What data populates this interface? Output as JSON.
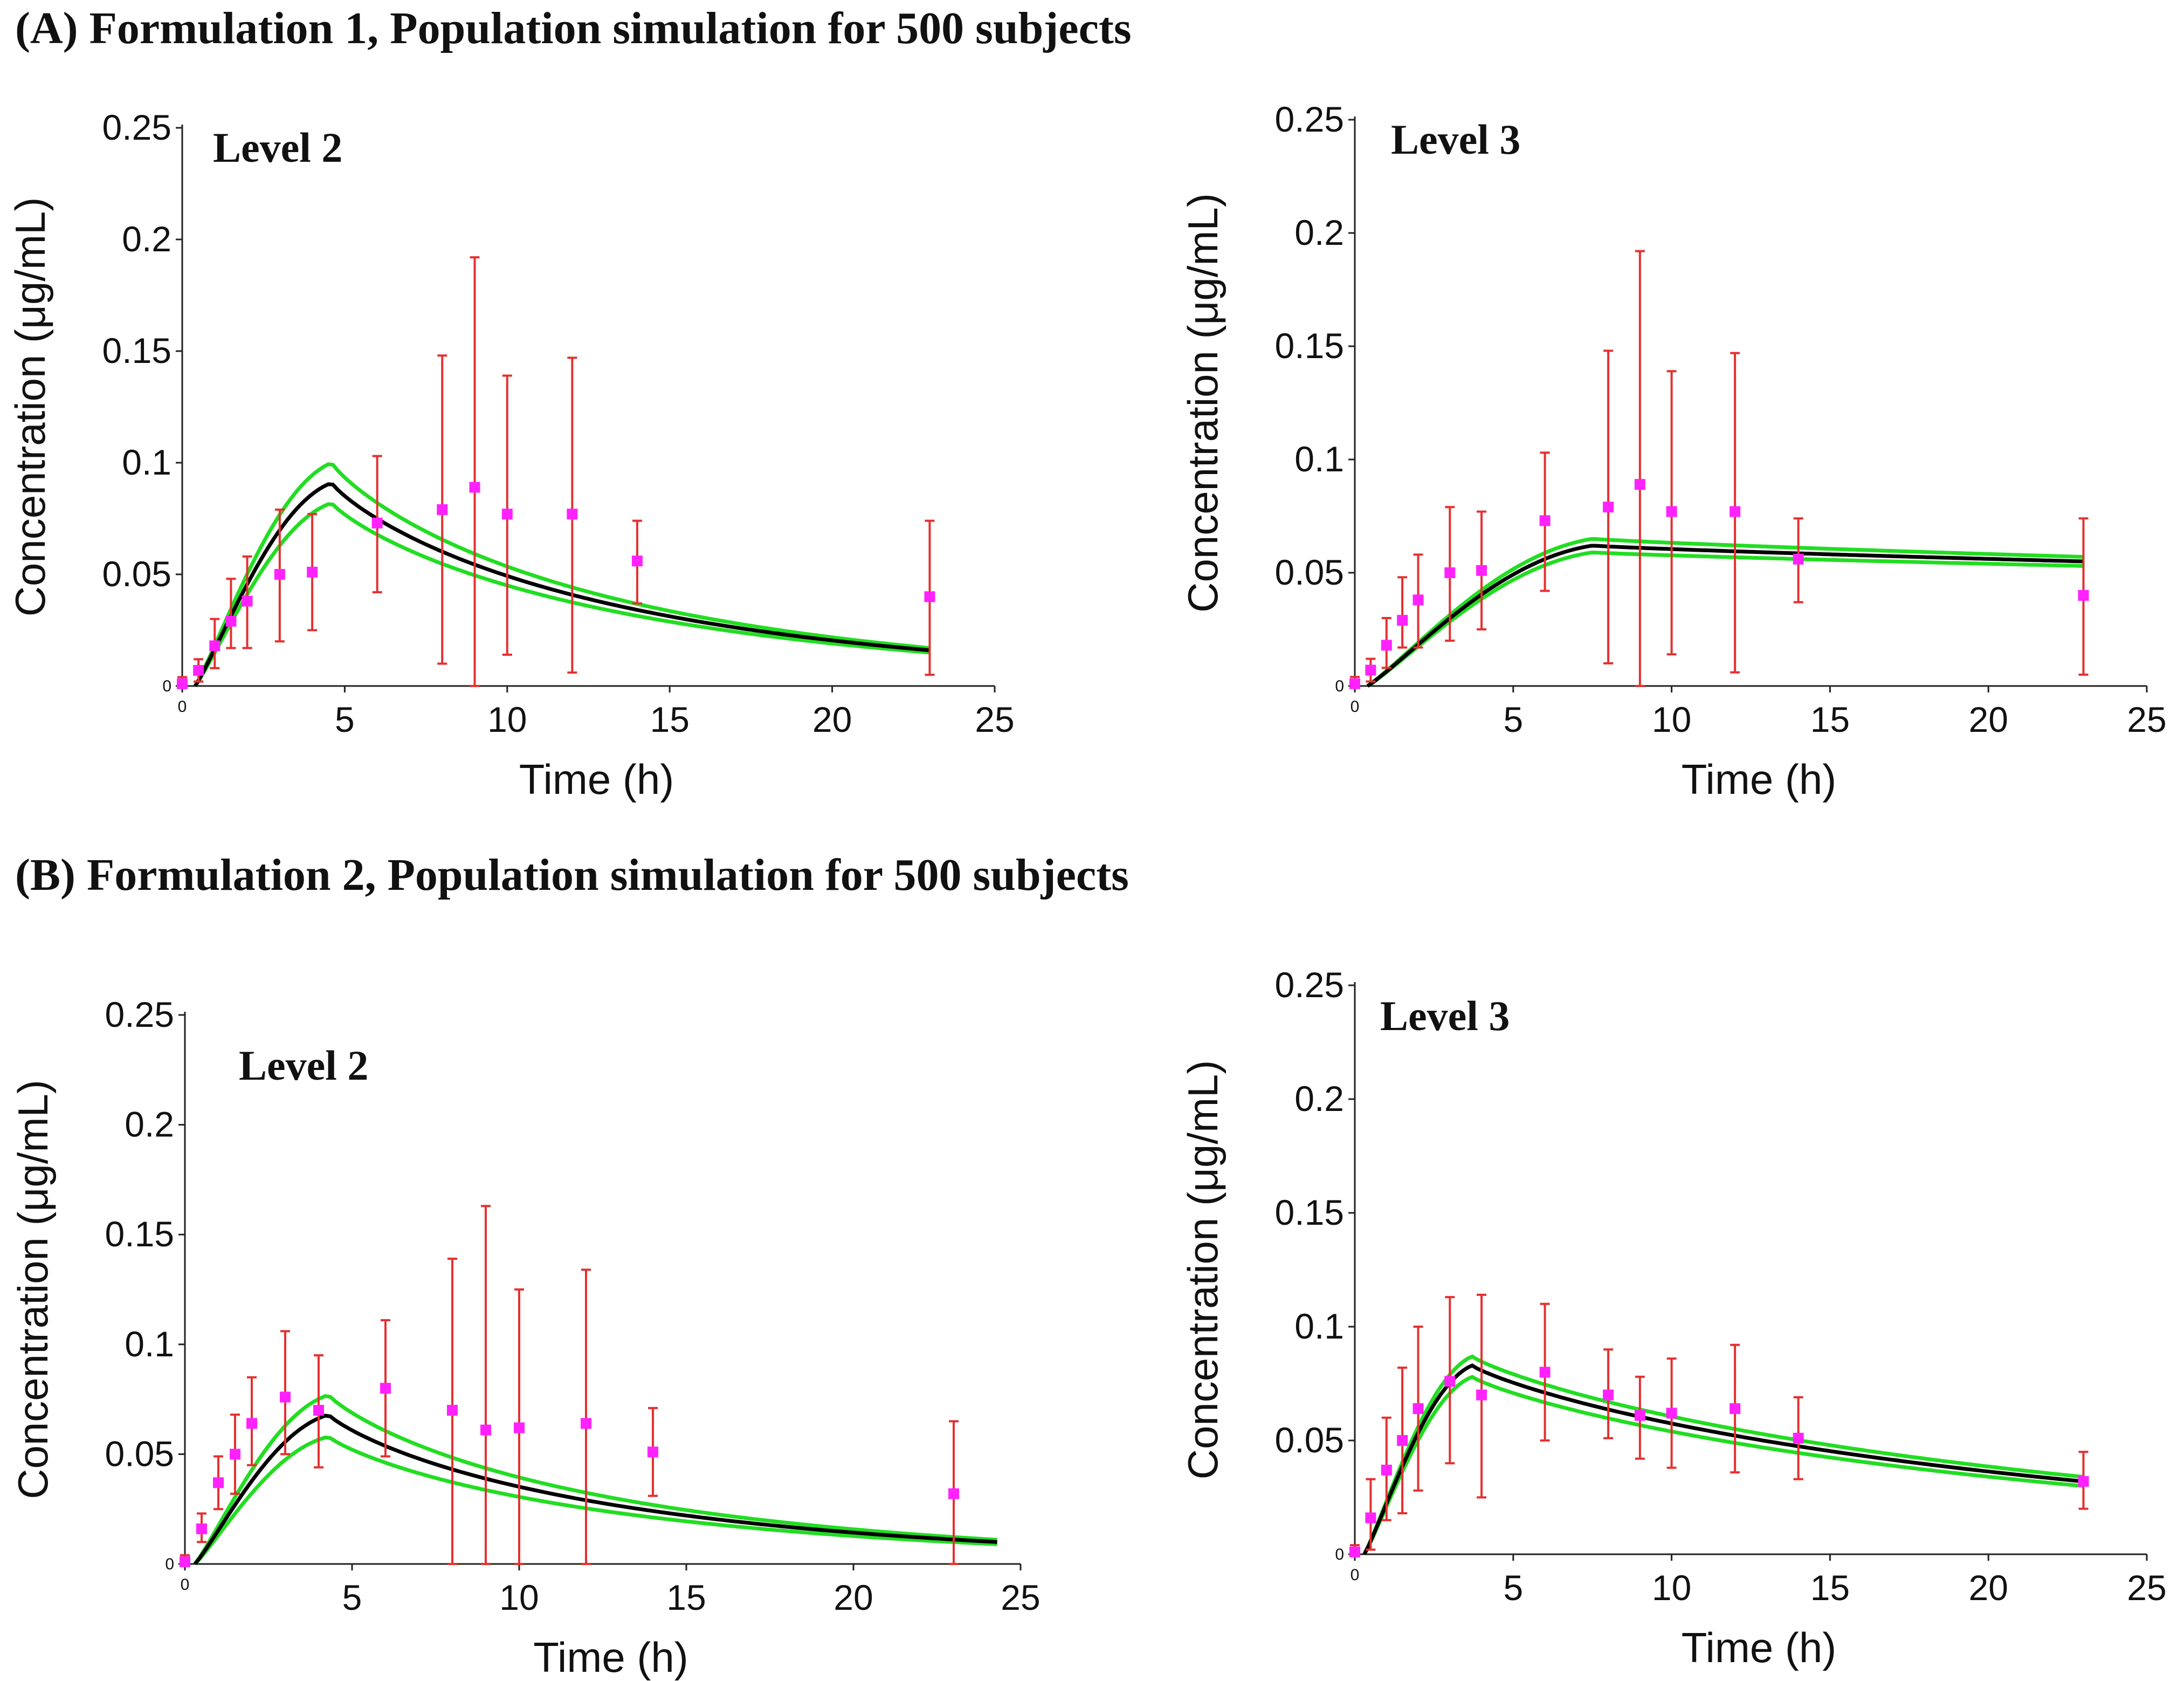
{
  "figure": {
    "sections": [
      {
        "heading": "(A) Formulation 1, Population simulation for 500 subjects"
      },
      {
        "heading": "(B) Formulation 2, Population simulation for 500 subjects"
      }
    ]
  },
  "colors": {
    "mean_curve": "#000000",
    "ci_curves": "#22dd22",
    "observed_points": "#ff22ff",
    "error_bars": "#e53030"
  },
  "chart_data": [
    {
      "type": "line",
      "panel": "A-left",
      "title": "Level 2",
      "xlabel": "Time (h)",
      "ylabel": "Concentration (μg/mL)",
      "xlim": [
        0,
        25
      ],
      "ylim": [
        0,
        0.25
      ],
      "xticks": [
        "0",
        "5",
        "10",
        "15",
        "20",
        "25"
      ],
      "yticks": [
        "0",
        "0.05",
        "0.1",
        "0.15",
        "0.2",
        "0.25"
      ],
      "x": [
        0,
        0.5,
        1,
        1.5,
        2,
        3,
        4,
        6,
        8,
        9,
        10,
        12,
        14,
        23
      ],
      "observed": [
        0.001,
        0.007,
        0.018,
        0.029,
        0.038,
        0.05,
        0.051,
        0.073,
        0.079,
        0.089,
        0.077,
        0.077,
        0.056,
        0.04
      ],
      "err_low": [
        0,
        0.002,
        0.008,
        0.017,
        0.017,
        0.02,
        0.025,
        0.042,
        0.01,
        0,
        0.014,
        0.006,
        0.037,
        0.005
      ],
      "err_high": [
        0.004,
        0.012,
        0.03,
        0.048,
        0.058,
        0.079,
        0.077,
        0.103,
        0.148,
        0.192,
        0.139,
        0.147,
        0.074,
        0.074
      ],
      "model": {
        "t_start": 0.4,
        "t_end": 23,
        "peak_time": 4.6,
        "peak_mean": 0.091,
        "peak_upper": 0.1,
        "peak_lower": 0.082,
        "end_mean": 0.016,
        "end_upper": 0.017,
        "end_lower": 0.015
      }
    },
    {
      "type": "line",
      "panel": "A-right",
      "title": "Level 3",
      "xlabel": "Time (h)",
      "ylabel": "Concentration (μg/mL)",
      "xlim": [
        0,
        25
      ],
      "ylim": [
        0,
        0.25
      ],
      "xticks": [
        "0",
        "5",
        "10",
        "15",
        "20",
        "25"
      ],
      "yticks": [
        "0",
        "0.05",
        "0.1",
        "0.15",
        "0.2",
        "0.25"
      ],
      "x": [
        0,
        0.5,
        1,
        1.5,
        2,
        3,
        4,
        6,
        8,
        9,
        10,
        12,
        14,
        23
      ],
      "observed": [
        0.001,
        0.007,
        0.018,
        0.029,
        0.038,
        0.05,
        0.051,
        0.073,
        0.079,
        0.089,
        0.077,
        0.077,
        0.056,
        0.04
      ],
      "err_low": [
        0,
        0.002,
        0.008,
        0.017,
        0.017,
        0.02,
        0.025,
        0.042,
        0.01,
        0,
        0.014,
        0.006,
        0.037,
        0.005
      ],
      "err_high": [
        0.004,
        0.012,
        0.03,
        0.048,
        0.058,
        0.079,
        0.077,
        0.103,
        0.148,
        0.192,
        0.139,
        0.147,
        0.074,
        0.074
      ],
      "model": {
        "t_start": 0.4,
        "t_end": 23,
        "peak_time": 7.5,
        "peak_mean": 0.062,
        "peak_upper": 0.065,
        "peak_lower": 0.059,
        "end_mean": 0.055,
        "end_upper": 0.057,
        "end_lower": 0.053
      }
    },
    {
      "type": "line",
      "panel": "B-left",
      "title": "Level 2",
      "xlabel": "Time (h)",
      "ylabel": "Concentration (μg/mL)",
      "xlim": [
        0,
        25
      ],
      "ylim": [
        0,
        0.25
      ],
      "xticks": [
        "0",
        "5",
        "10",
        "15",
        "20",
        "25"
      ],
      "yticks": [
        "0",
        "0.05",
        "0.1",
        "0.15",
        "0.2",
        "0.25"
      ],
      "x": [
        0,
        0.5,
        1,
        1.5,
        2,
        3,
        4,
        6,
        8,
        9,
        10,
        12,
        14,
        23
      ],
      "observed": [
        0.001,
        0.016,
        0.037,
        0.05,
        0.064,
        0.076,
        0.07,
        0.08,
        0.07,
        0.061,
        0.062,
        0.064,
        0.051,
        0.032
      ],
      "err_low": [
        0,
        0.01,
        0.025,
        0.032,
        0.045,
        0.05,
        0.044,
        0.049,
        0,
        0,
        0,
        0,
        0.031,
        0
      ],
      "err_high": [
        0.004,
        0.023,
        0.049,
        0.068,
        0.085,
        0.106,
        0.095,
        0.111,
        0.139,
        0.163,
        0.125,
        0.134,
        0.071,
        0.065
      ],
      "model": {
        "t_start": 0.3,
        "t_end": 24.3,
        "peak_time": 4.3,
        "peak_mean": 0.068,
        "peak_upper": 0.077,
        "peak_lower": 0.058,
        "end_mean": 0.01,
        "end_upper": 0.011,
        "end_lower": 0.009
      }
    },
    {
      "type": "line",
      "panel": "B-right",
      "title": "Level  3",
      "xlabel": "Time (h)",
      "ylabel": "Concentration (μg/mL)",
      "xlim": [
        0,
        25
      ],
      "ylim": [
        0,
        0.25
      ],
      "xticks": [
        "0",
        "5",
        "10",
        "15",
        "20",
        "25"
      ],
      "yticks": [
        "0",
        "0.05",
        "0.1",
        "0.15",
        "0.2",
        "0.25"
      ],
      "x": [
        0,
        0.5,
        1,
        1.5,
        2,
        3,
        4,
        6,
        8,
        9,
        10,
        12,
        14,
        23
      ],
      "observed": [
        0.001,
        0.016,
        0.037,
        0.05,
        0.064,
        0.076,
        0.07,
        0.08,
        0.07,
        0.061,
        0.062,
        0.064,
        0.051,
        0.032
      ],
      "err_low": [
        0,
        0.002,
        0.015,
        0.018,
        0.028,
        0.04,
        0.025,
        0.05,
        0.051,
        0.042,
        0.038,
        0.036,
        0.033,
        0.02
      ],
      "err_high": [
        0.004,
        0.033,
        0.06,
        0.082,
        0.1,
        0.113,
        0.114,
        0.11,
        0.09,
        0.078,
        0.086,
        0.092,
        0.069,
        0.045
      ],
      "model": {
        "t_start": 0.3,
        "t_end": 23,
        "peak_time": 3.7,
        "peak_mean": 0.083,
        "peak_upper": 0.087,
        "peak_lower": 0.078,
        "end_mean": 0.032,
        "end_upper": 0.034,
        "end_lower": 0.03
      }
    }
  ]
}
